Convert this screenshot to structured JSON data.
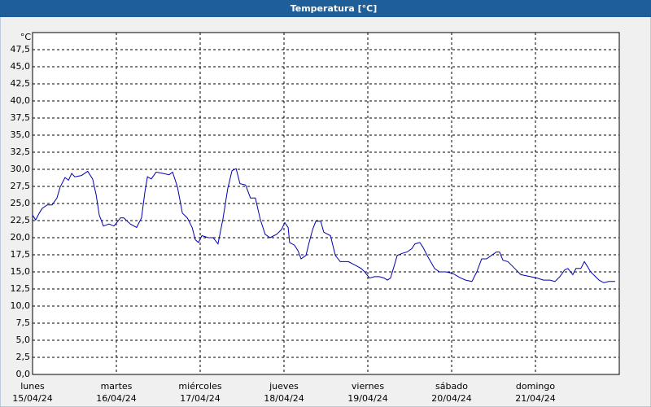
{
  "chart_data": {
    "type": "line",
    "title": "Temperatura [°C]",
    "y_label": "°C",
    "x": [
      0,
      0.9,
      1.9,
      2.8,
      4.2,
      5.6,
      7.0,
      7.9,
      9.3,
      10.3,
      11.2,
      12.1,
      14.0,
      15.8,
      17.2,
      18.2,
      19.1,
      20.3,
      21.9,
      23.3,
      25.2,
      26.1,
      28.0,
      29.8,
      31.2,
      32.2,
      32.9,
      34.0,
      35.4,
      37.3,
      39.1,
      40.1,
      41.5,
      42.9,
      44.3,
      45.7,
      46.6,
      47.5,
      48.5,
      50.3,
      51.7,
      53.1,
      54.5,
      55.9,
      57.1,
      58.3,
      59.4,
      61.0,
      62.4,
      63.8,
      65.2,
      66.6,
      68.0,
      69.9,
      71.3,
      72.2,
      73.2,
      73.6,
      75.0,
      76.0,
      76.9,
      78.3,
      79.2,
      80.2,
      81.1,
      82.5,
      83.4,
      85.3,
      86.7,
      88.1,
      90.4,
      92.3,
      94.1,
      95.1,
      96.5,
      97.9,
      99.3,
      100.7,
      101.6,
      102.5,
      103.5,
      104.4,
      105.8,
      107.2,
      108.6,
      109.5,
      110.9,
      111.8,
      113.2,
      115.1,
      116.5,
      118.4,
      120.2,
      122.6,
      124.0,
      125.8,
      127.2,
      128.6,
      130.0,
      131.4,
      132.8,
      133.7,
      134.7,
      136.1,
      137.5,
      139.8,
      142.6,
      144.5,
      146.3,
      148.2,
      149.6,
      151.0,
      152.4,
      153.3,
      154.7,
      155.6,
      157.0,
      158.0,
      158.9,
      159.8,
      161.2,
      162.2,
      163.6,
      165.0,
      166.8
    ],
    "series": [
      {
        "name": "Temperatura",
        "color": "#0000b0",
        "values": [
          23.3,
          22.6,
          23.6,
          24.3,
          24.8,
          24.8,
          25.8,
          27.4,
          28.8,
          28.4,
          29.4,
          28.9,
          29.1,
          29.7,
          28.6,
          26.3,
          23.3,
          21.7,
          22.0,
          21.7,
          22.9,
          22.9,
          22.0,
          21.5,
          22.9,
          26.8,
          28.9,
          28.6,
          29.6,
          29.4,
          29.2,
          29.6,
          27.4,
          23.6,
          22.9,
          21.5,
          19.7,
          19.3,
          20.3,
          20.0,
          20.0,
          19.1,
          22.7,
          27.2,
          29.8,
          30.1,
          27.9,
          27.7,
          25.8,
          25.8,
          22.7,
          20.5,
          20.0,
          20.5,
          21.2,
          22.2,
          21.5,
          19.3,
          18.9,
          18.1,
          16.9,
          17.4,
          19.3,
          21.2,
          22.4,
          22.4,
          20.8,
          20.3,
          17.4,
          16.5,
          16.5,
          16.0,
          15.5,
          15.0,
          14.1,
          14.3,
          14.3,
          14.1,
          13.8,
          14.1,
          15.8,
          17.4,
          17.7,
          17.9,
          18.4,
          19.1,
          19.3,
          18.6,
          17.2,
          15.5,
          15.0,
          15.0,
          14.8,
          14.1,
          13.8,
          13.6,
          15.0,
          16.9,
          16.9,
          17.4,
          17.9,
          17.9,
          16.7,
          16.5,
          15.8,
          14.6,
          14.3,
          14.1,
          13.8,
          13.8,
          13.6,
          14.3,
          15.3,
          15.5,
          14.6,
          15.5,
          15.5,
          16.5,
          15.8,
          15.0,
          14.3,
          13.8,
          13.4,
          13.6,
          13.6
        ]
      }
    ],
    "xlim": [
      0,
      168
    ],
    "xticks": [
      {
        "value": 0,
        "label": "lunes",
        "sublabel": "15/04/24"
      },
      {
        "value": 24,
        "label": "martes",
        "sublabel": "16/04/24"
      },
      {
        "value": 48,
        "label": "miércoles",
        "sublabel": "17/04/24"
      },
      {
        "value": 72,
        "label": "jueves",
        "sublabel": "18/04/24"
      },
      {
        "value": 96,
        "label": "viernes",
        "sublabel": "19/04/24"
      },
      {
        "value": 120,
        "label": "sábado",
        "sublabel": "20/04/24"
      },
      {
        "value": 144,
        "label": "domingo",
        "sublabel": "21/04/24"
      }
    ],
    "ylim": [
      0,
      50
    ],
    "yticks": [
      {
        "value": 0,
        "label": "0,0"
      },
      {
        "value": 2.5,
        "label": "2,5"
      },
      {
        "value": 5,
        "label": "5,0"
      },
      {
        "value": 7.5,
        "label": "7,5"
      },
      {
        "value": 10,
        "label": "10,0"
      },
      {
        "value": 12.5,
        "label": "12,5"
      },
      {
        "value": 15,
        "label": "15,0"
      },
      {
        "value": 17.5,
        "label": "17,5"
      },
      {
        "value": 20,
        "label": "20,0"
      },
      {
        "value": 22.5,
        "label": "22,5"
      },
      {
        "value": 25,
        "label": "25,0"
      },
      {
        "value": 27.5,
        "label": "27,5"
      },
      {
        "value": 30,
        "label": "30,0"
      },
      {
        "value": 32.5,
        "label": "32,5"
      },
      {
        "value": 35,
        "label": "35,0"
      },
      {
        "value": 37.5,
        "label": "37,5"
      },
      {
        "value": 40,
        "label": "40,0"
      },
      {
        "value": 42.5,
        "label": "42,5"
      },
      {
        "value": 45,
        "label": "45,0"
      },
      {
        "value": 47.5,
        "label": "47,5"
      }
    ],
    "grid": true
  }
}
